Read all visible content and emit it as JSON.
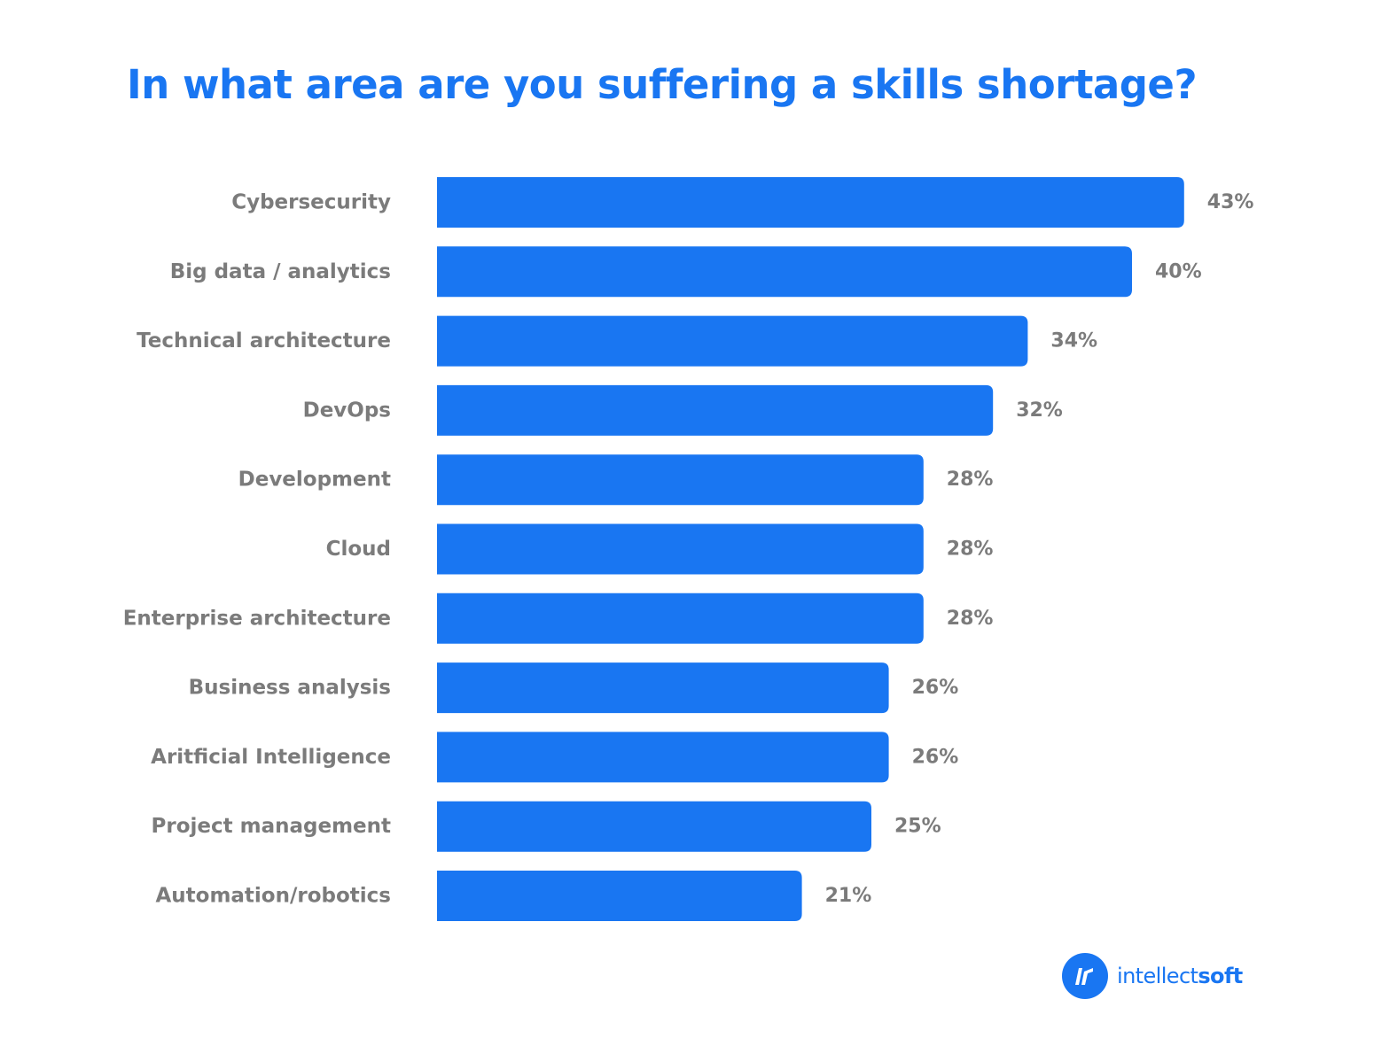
{
  "title": "In what area are you suffering a skills shortage?",
  "colors": {
    "bar": "#1976f2",
    "title": "#1976f2",
    "label": "#7b7b7b",
    "brand": "#1976f2"
  },
  "brand": {
    "icon": "intellectsoft-logo-icon",
    "name_regular": "intellect",
    "name_bold": "soft"
  },
  "chart_data": {
    "type": "bar",
    "orientation": "horizontal",
    "title": "In what area are you suffering a skills shortage?",
    "xlabel": "",
    "ylabel": "",
    "grid": false,
    "categories": [
      "Cybersecurity",
      "Big data / analytics",
      "Technical architecture",
      "DevOps",
      "Development",
      "Cloud",
      "Enterprise architecture",
      "Business analysis",
      "Aritficial Intelligence",
      "Project management",
      "Automation/robotics"
    ],
    "values": [
      43,
      40,
      34,
      32,
      28,
      28,
      28,
      26,
      26,
      25,
      21
    ],
    "value_labels": [
      "43%",
      "40%",
      "34%",
      "32%",
      "28%",
      "28%",
      "28%",
      "26%",
      "26%",
      "25%",
      "21%"
    ]
  }
}
